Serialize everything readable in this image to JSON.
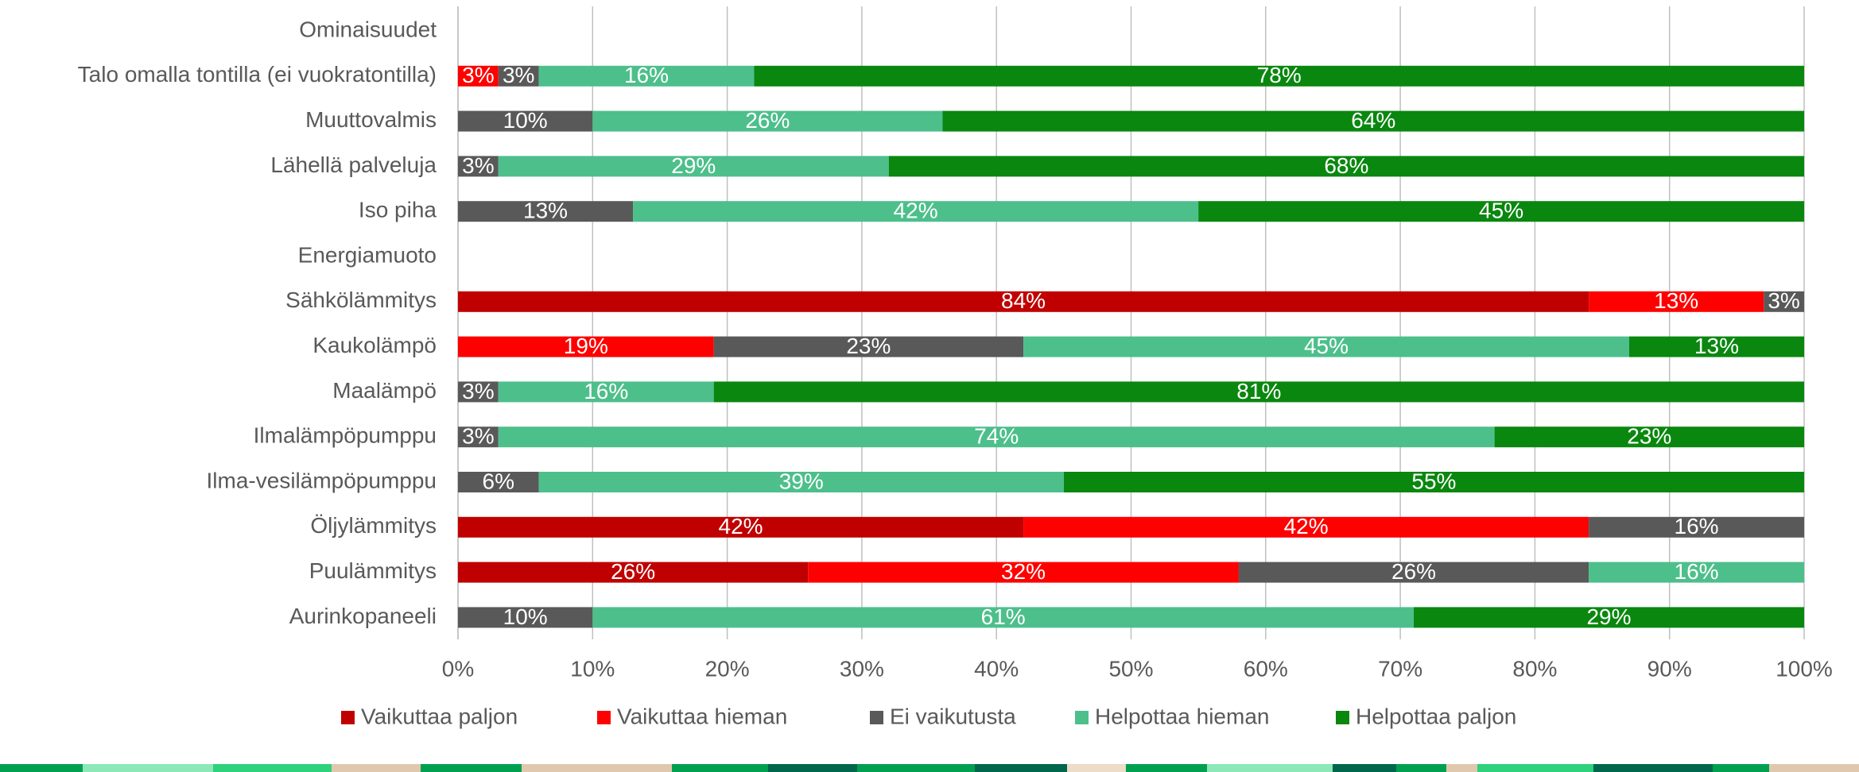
{
  "chart_data": {
    "type": "stacked-barh",
    "categories": [
      "Ominaisuudet",
      "Talo omalla tontilla (ei vuokratontilla)",
      "Muuttovalmis",
      "Lähellä palveluja",
      "Iso piha",
      "Energiamuoto",
      "Sähkölämmitys",
      "Kaukolämpö",
      "Maalämpö",
      "Ilmalämpöpumppu",
      "Ilma-vesilämpöpumppu",
      "Öljylämmitys",
      "Puulämmitys",
      "Aurinkopaneeli"
    ],
    "series": [
      {
        "name": "Vaikuttaa paljon",
        "color": "#c00000",
        "values": [
          null,
          null,
          null,
          null,
          null,
          null,
          84,
          null,
          null,
          null,
          null,
          42,
          26,
          null
        ],
        "value_labels": [
          null,
          null,
          null,
          null,
          null,
          null,
          "84%",
          null,
          null,
          null,
          null,
          "42%",
          "26%",
          null
        ]
      },
      {
        "name": "Vaikuttaa hieman",
        "color": "#ff0000",
        "values": [
          null,
          3,
          null,
          null,
          null,
          null,
          13,
          19,
          null,
          null,
          null,
          42,
          32,
          null
        ],
        "value_labels": [
          null,
          "3%",
          null,
          null,
          null,
          null,
          "13%",
          "19%",
          null,
          null,
          null,
          "42%",
          "32%",
          null
        ]
      },
      {
        "name": "Ei vaikutusta",
        "color": "#595959",
        "values": [
          null,
          3,
          10,
          3,
          13,
          null,
          3,
          23,
          3,
          3,
          6,
          16,
          26,
          10
        ],
        "value_labels": [
          null,
          "3%",
          "10%",
          "3%",
          "13%",
          null,
          "3%",
          "23%",
          "3%",
          "3%",
          "6%",
          "16%",
          "26%",
          "10%"
        ]
      },
      {
        "name": "Helpottaa hieman",
        "color": "#4dbf8b",
        "values": [
          null,
          16,
          26,
          29,
          42,
          null,
          null,
          45,
          16,
          74,
          39,
          null,
          16,
          61
        ],
        "value_labels": [
          null,
          "16%",
          "26%",
          "29%",
          "42%",
          null,
          null,
          "45%",
          "16%",
          "74%",
          "39%",
          null,
          "16%",
          "61%"
        ]
      },
      {
        "name": "Helpottaa paljon",
        "color": "#0a870f",
        "values": [
          null,
          78,
          64,
          68,
          45,
          null,
          null,
          13,
          81,
          23,
          55,
          null,
          null,
          29
        ],
        "value_labels": [
          null,
          "78%",
          "64%",
          "68%",
          "45%",
          null,
          null,
          "13%",
          "81%",
          "23%",
          "55%",
          null,
          null,
          "29%"
        ]
      }
    ],
    "xlim": [
      0,
      100
    ],
    "xticks": [
      {
        "value": 0,
        "label": "0%"
      },
      {
        "value": 10,
        "label": "10%"
      },
      {
        "value": 20,
        "label": "20%"
      },
      {
        "value": 30,
        "label": "30%"
      },
      {
        "value": 40,
        "label": "40%"
      },
      {
        "value": 50,
        "label": "50%"
      },
      {
        "value": 60,
        "label": "60%"
      },
      {
        "value": 70,
        "label": "70%"
      },
      {
        "value": 80,
        "label": "80%"
      },
      {
        "value": 90,
        "label": "90%"
      },
      {
        "value": 100,
        "label": "100%"
      }
    ],
    "grid": true,
    "legend": "bottom"
  }
}
